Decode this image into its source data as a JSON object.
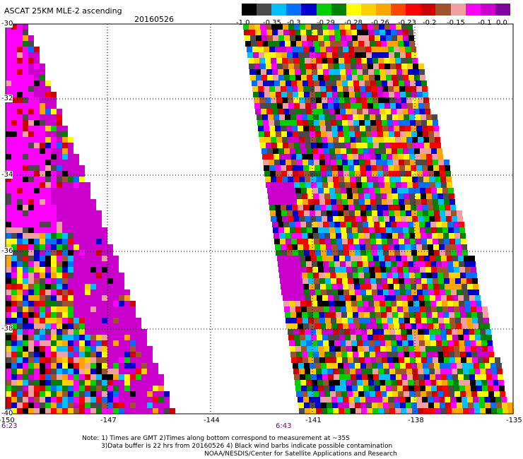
{
  "header": {
    "title": "ASCAT 25KM MLE-2 ascending",
    "date": "20160526"
  },
  "colorbar": {
    "colors": [
      "#000000",
      "#4a4a4a",
      "#00bfff",
      "#0070ff",
      "#0000cd",
      "#00d000",
      "#008000",
      "#ffff00",
      "#ffd000",
      "#ffa500",
      "#ff4500",
      "#ff0000",
      "#d00000",
      "#a0522d",
      "#f0a0a0",
      "#ff00ff",
      "#cc00cc",
      "#8000a0"
    ],
    "labels": [
      "-1.0",
      "-0.35",
      "-0.3",
      "-0.29",
      "-0.28",
      "-0.26",
      "-0.23",
      "-0.2",
      "-0.15",
      "-0.1",
      "0.0"
    ]
  },
  "axes": {
    "lat_labels": [
      "-30",
      "-32",
      "-34",
      "-36",
      "-38",
      "-40"
    ],
    "lon_labels": [
      "-150",
      "-147",
      "-144",
      "-141",
      "-138",
      "-135"
    ]
  },
  "times": {
    "left": "6:23",
    "right": "6:43"
  },
  "notes": {
    "line1": "Note: 1) Times are GMT 2)Times along bottom correspond to measurement at ~35S",
    "line2": "3)Data buffer is 22 hrs from 20160526 4) Black wind barbs indicate possible contamination",
    "line3": "NOAA/NESDIS/Center for Satellite Applications and Research"
  }
}
